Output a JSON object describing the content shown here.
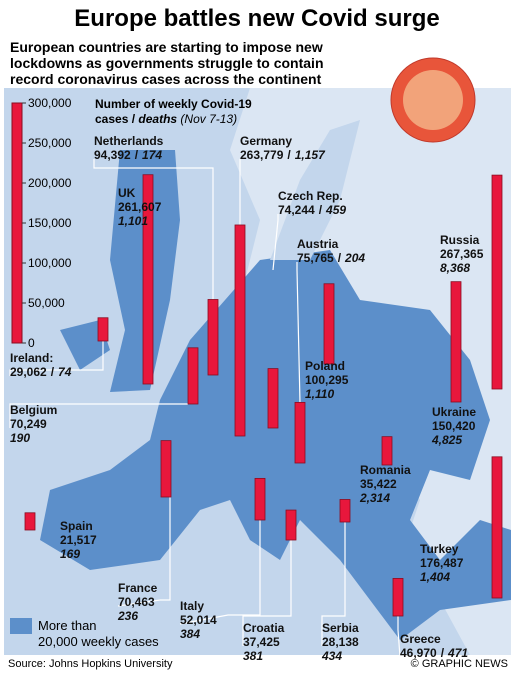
{
  "title": "Europe battles new Covid surge",
  "subtitle": [
    "European countries are starting to impose new",
    "lockdowns as governments struggle to contain",
    "record coronavirus cases across the continent"
  ],
  "scale_title": {
    "line1": "Number of weekly Covid-19",
    "line2": "cases /",
    "deaths": "deaths",
    "period": "(Nov 7-13)"
  },
  "scale": {
    "min": 0,
    "max": 300000,
    "ticks": [
      0,
      {
        "value": 50000,
        "label": "50,000"
      },
      {
        "value": 100000,
        "label": "100,000"
      },
      {
        "value": 150000,
        "label": "150,000"
      },
      {
        "value": 200000,
        "label": "200,000"
      },
      {
        "value": 250000,
        "label": "250,000"
      },
      {
        "value": 300000,
        "label": "300,000"
      }
    ]
  },
  "separator": "/",
  "countries": [
    {
      "name": "Netherlands",
      "cases": 94392,
      "cases_label": "94,392",
      "deaths": 174
    },
    {
      "name": "Germany",
      "cases": 263779,
      "cases_label": "263,779",
      "deaths": 1157,
      "deaths_label": "1,157"
    },
    {
      "name": "UK",
      "cases": 261607,
      "cases_label": "261,607",
      "deaths": 1101,
      "deaths_label": "1,101"
    },
    {
      "name": "Czech Rep.",
      "cases": 74244,
      "cases_label": "74,244",
      "deaths": 459
    },
    {
      "name": "Austria",
      "cases": 75765,
      "cases_label": "75,765",
      "deaths": 204
    },
    {
      "name": "Russia",
      "cases": 267365,
      "cases_label": "267,365",
      "deaths": 8368,
      "deaths_label": "8,368"
    },
    {
      "name": "Ireland:",
      "cases": 29062,
      "cases_label": "29,062",
      "deaths": 74
    },
    {
      "name": "Belgium",
      "cases": 70249,
      "cases_label": "70,249",
      "deaths": 190
    },
    {
      "name": "Poland",
      "cases": 100295,
      "cases_label": "100,295",
      "deaths": 1110,
      "deaths_label": "1,110"
    },
    {
      "name": "Ukraine",
      "cases": 150420,
      "cases_label": "150,420",
      "deaths": 4825,
      "deaths_label": "4,825"
    },
    {
      "name": "Romania",
      "cases": 35422,
      "cases_label": "35,422",
      "deaths": 2314,
      "deaths_label": "2,314"
    },
    {
      "name": "Spain",
      "cases": 21517,
      "cases_label": "21,517",
      "deaths": 169
    },
    {
      "name": "France",
      "cases": 70463,
      "cases_label": "70,463",
      "deaths": 236
    },
    {
      "name": "Italy",
      "cases": 52014,
      "cases_label": "52,014",
      "deaths": 384
    },
    {
      "name": "Croatia",
      "cases": 37425,
      "cases_label": "37,425",
      "deaths": 381
    },
    {
      "name": "Serbia",
      "cases": 28138,
      "cases_label": "28,138",
      "deaths": 434
    },
    {
      "name": "Turkey",
      "cases": 176487,
      "cases_label": "176,487",
      "deaths": 1404,
      "deaths_label": "1,404"
    },
    {
      "name": "Greece",
      "cases": 46970,
      "cases_label": "46,970",
      "deaths": 471
    }
  ],
  "legend": [
    "More than",
    "20,000 weekly cases"
  ],
  "source": "Source: Johns Hopkins University",
  "credit": "© GRAPHIC NEWS"
}
